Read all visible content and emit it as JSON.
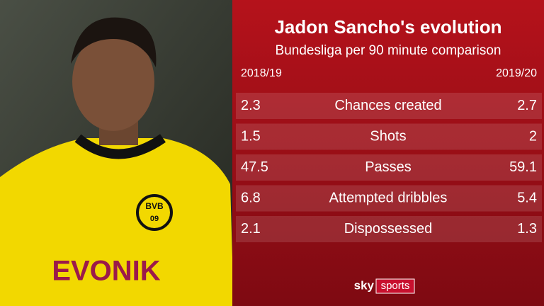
{
  "header": {
    "title": "Jadon Sancho's evolution",
    "subtitle": "Bundesliga per 90 minute comparison"
  },
  "table": {
    "columns": [
      "2018/19",
      "2019/20"
    ],
    "rows": [
      [
        "2.3",
        "Chances created",
        "2.7"
      ],
      [
        "1.5",
        "Shots",
        "2"
      ],
      [
        "47.5",
        "Passes",
        "59.1"
      ],
      [
        "6.8",
        "Attempted dribbles",
        "5.4"
      ],
      [
        "2.1",
        "Dispossessed",
        "1.3"
      ]
    ]
  },
  "photo": {
    "sponsor": "EVONIK",
    "badge": [
      "BVB",
      "09"
    ]
  },
  "logo": [
    "sky",
    "sports"
  ]
}
